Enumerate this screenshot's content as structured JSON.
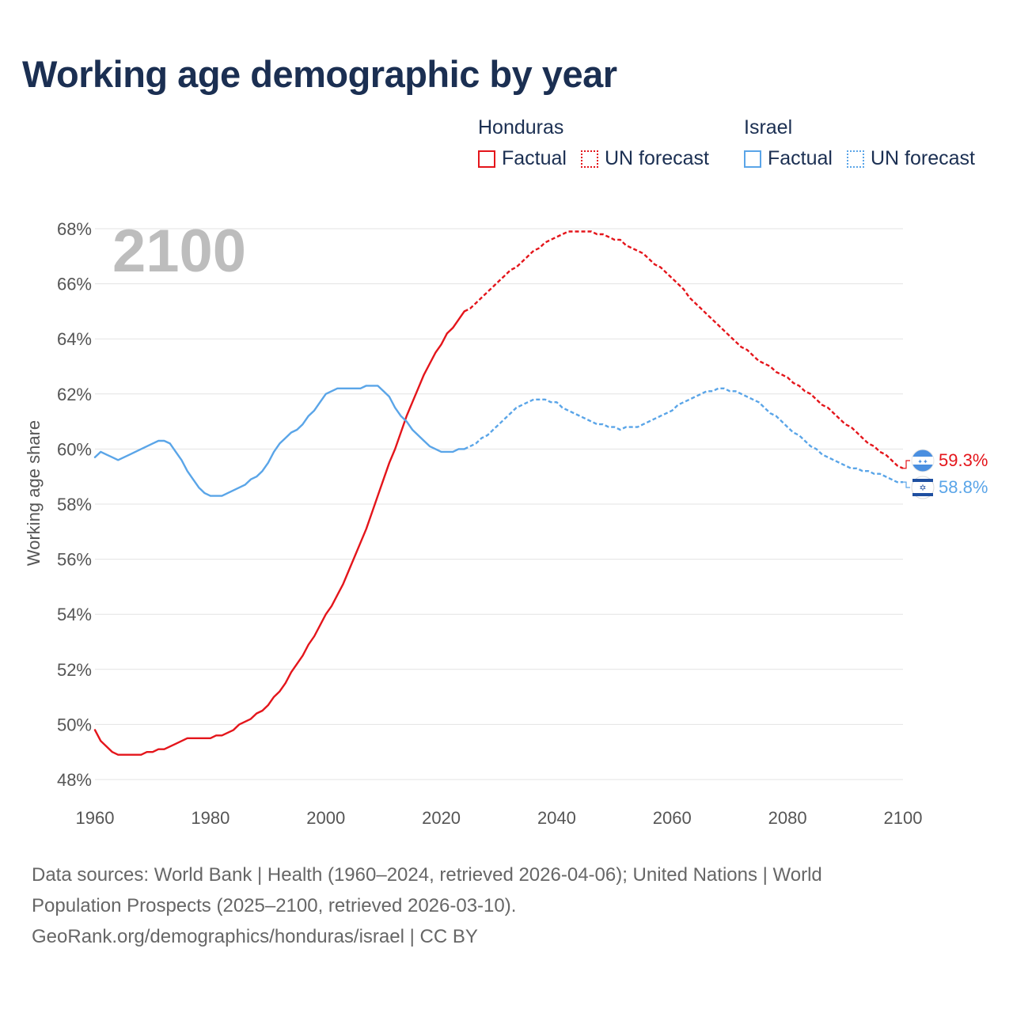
{
  "title": "Working age demographic by year",
  "year_watermark": "2100",
  "legend": {
    "groups": [
      {
        "country": "Honduras",
        "factual_label": "Factual",
        "forecast_label": "UN forecast",
        "color": "#e4151b"
      },
      {
        "country": "Israel",
        "factual_label": "Factual",
        "forecast_label": "UN forecast",
        "color": "#5aa5e8"
      }
    ]
  },
  "end_labels": {
    "honduras": {
      "value": "59.3%",
      "flag_icon": "honduras-flag-icon"
    },
    "israel": {
      "value": "58.8%",
      "flag_icon": "israel-flag-icon"
    }
  },
  "footer": {
    "line1": "Data sources: World Bank | Health (1960–2024, retrieved 2026-04-06); United Nations | World",
    "line2": "Population Prospects (2025–2100, retrieved 2026-03-10).",
    "line3": "GeoRank.org/demographics/honduras/israel | CC BY"
  },
  "chart_data": {
    "type": "line",
    "title": "Working age demographic by year",
    "xlabel": "",
    "ylabel": "Working age share",
    "xlim": [
      1960,
      2100
    ],
    "ylim": [
      48,
      68
    ],
    "x_ticks": [
      1960,
      1980,
      2000,
      2020,
      2040,
      2060,
      2080,
      2100
    ],
    "x_tick_labels": [
      "1960",
      "1980",
      "2000",
      "2020",
      "2040",
      "2060",
      "2080",
      "2100"
    ],
    "y_ticks": [
      48,
      50,
      52,
      54,
      56,
      58,
      60,
      62,
      64,
      66,
      68
    ],
    "y_tick_labels": [
      "48%",
      "50%",
      "52%",
      "54%",
      "56%",
      "58%",
      "60%",
      "62%",
      "64%",
      "66%",
      "68%"
    ],
    "grid": true,
    "factual_end_year": 2024,
    "series": [
      {
        "name": "Honduras",
        "color": "#e4151b",
        "points": [
          [
            1960,
            49.8
          ],
          [
            1961,
            49.4
          ],
          [
            1962,
            49.2
          ],
          [
            1963,
            49.0
          ],
          [
            1964,
            48.9
          ],
          [
            1966,
            48.9
          ],
          [
            1968,
            48.9
          ],
          [
            1969,
            49.0
          ],
          [
            1970,
            49.0
          ],
          [
            1971,
            49.1
          ],
          [
            1972,
            49.1
          ],
          [
            1974,
            49.3
          ],
          [
            1976,
            49.5
          ],
          [
            1978,
            49.5
          ],
          [
            1980,
            49.5
          ],
          [
            1981,
            49.6
          ],
          [
            1982,
            49.6
          ],
          [
            1984,
            49.8
          ],
          [
            1985,
            50.0
          ],
          [
            1987,
            50.2
          ],
          [
            1988,
            50.4
          ],
          [
            1989,
            50.5
          ],
          [
            1990,
            50.7
          ],
          [
            1991,
            51.0
          ],
          [
            1992,
            51.2
          ],
          [
            1993,
            51.5
          ],
          [
            1994,
            51.9
          ],
          [
            1996,
            52.5
          ],
          [
            1997,
            52.9
          ],
          [
            1998,
            53.2
          ],
          [
            2000,
            54.0
          ],
          [
            2001,
            54.3
          ],
          [
            2002,
            54.7
          ],
          [
            2003,
            55.1
          ],
          [
            2004,
            55.6
          ],
          [
            2005,
            56.1
          ],
          [
            2006,
            56.6
          ],
          [
            2007,
            57.1
          ],
          [
            2008,
            57.7
          ],
          [
            2009,
            58.3
          ],
          [
            2010,
            58.9
          ],
          [
            2011,
            59.5
          ],
          [
            2012,
            60.0
          ],
          [
            2013,
            60.6
          ],
          [
            2014,
            61.2
          ],
          [
            2015,
            61.7
          ],
          [
            2016,
            62.2
          ],
          [
            2017,
            62.7
          ],
          [
            2018,
            63.1
          ],
          [
            2019,
            63.5
          ],
          [
            2020,
            63.8
          ],
          [
            2021,
            64.2
          ],
          [
            2022,
            64.4
          ],
          [
            2023,
            64.7
          ],
          [
            2024,
            65.0
          ],
          [
            2025,
            65.1
          ],
          [
            2026,
            65.3
          ],
          [
            2027,
            65.5
          ],
          [
            2028,
            65.7
          ],
          [
            2029,
            65.9
          ],
          [
            2030,
            66.1
          ],
          [
            2031,
            66.3
          ],
          [
            2032,
            66.5
          ],
          [
            2033,
            66.6
          ],
          [
            2034,
            66.8
          ],
          [
            2035,
            67.0
          ],
          [
            2036,
            67.2
          ],
          [
            2037,
            67.3
          ],
          [
            2038,
            67.5
          ],
          [
            2039,
            67.6
          ],
          [
            2040,
            67.7
          ],
          [
            2041,
            67.8
          ],
          [
            2042,
            67.9
          ],
          [
            2043,
            67.9
          ],
          [
            2044,
            67.9
          ],
          [
            2045,
            67.9
          ],
          [
            2046,
            67.9
          ],
          [
            2047,
            67.8
          ],
          [
            2048,
            67.8
          ],
          [
            2049,
            67.7
          ],
          [
            2050,
            67.6
          ],
          [
            2051,
            67.6
          ],
          [
            2052,
            67.4
          ],
          [
            2053,
            67.3
          ],
          [
            2054,
            67.2
          ],
          [
            2055,
            67.1
          ],
          [
            2056,
            66.9
          ],
          [
            2057,
            66.7
          ],
          [
            2058,
            66.6
          ],
          [
            2059,
            66.4
          ],
          [
            2060,
            66.2
          ],
          [
            2061,
            66.0
          ],
          [
            2062,
            65.8
          ],
          [
            2063,
            65.5
          ],
          [
            2064,
            65.3
          ],
          [
            2065,
            65.1
          ],
          [
            2066,
            64.9
          ],
          [
            2067,
            64.7
          ],
          [
            2068,
            64.5
          ],
          [
            2069,
            64.3
          ],
          [
            2070,
            64.1
          ],
          [
            2071,
            63.9
          ],
          [
            2072,
            63.7
          ],
          [
            2073,
            63.6
          ],
          [
            2074,
            63.4
          ],
          [
            2075,
            63.2
          ],
          [
            2076,
            63.1
          ],
          [
            2077,
            63.0
          ],
          [
            2078,
            62.8
          ],
          [
            2079,
            62.7
          ],
          [
            2080,
            62.6
          ],
          [
            2081,
            62.4
          ],
          [
            2082,
            62.3
          ],
          [
            2083,
            62.1
          ],
          [
            2084,
            62.0
          ],
          [
            2085,
            61.8
          ],
          [
            2086,
            61.6
          ],
          [
            2087,
            61.5
          ],
          [
            2088,
            61.3
          ],
          [
            2089,
            61.1
          ],
          [
            2090,
            60.9
          ],
          [
            2091,
            60.8
          ],
          [
            2092,
            60.6
          ],
          [
            2093,
            60.4
          ],
          [
            2094,
            60.2
          ],
          [
            2095,
            60.1
          ],
          [
            2096,
            59.9
          ],
          [
            2097,
            59.8
          ],
          [
            2098,
            59.6
          ],
          [
            2099,
            59.4
          ],
          [
            2100,
            59.3
          ]
        ]
      },
      {
        "name": "Israel",
        "color": "#5aa5e8",
        "points": [
          [
            1960,
            59.7
          ],
          [
            1961,
            59.9
          ],
          [
            1962,
            59.8
          ],
          [
            1963,
            59.7
          ],
          [
            1964,
            59.6
          ],
          [
            1966,
            59.8
          ],
          [
            1968,
            60.0
          ],
          [
            1970,
            60.2
          ],
          [
            1971,
            60.3
          ],
          [
            1972,
            60.3
          ],
          [
            1973,
            60.2
          ],
          [
            1974,
            59.9
          ],
          [
            1975,
            59.6
          ],
          [
            1976,
            59.2
          ],
          [
            1977,
            58.9
          ],
          [
            1978,
            58.6
          ],
          [
            1979,
            58.4
          ],
          [
            1980,
            58.3
          ],
          [
            1981,
            58.3
          ],
          [
            1982,
            58.3
          ],
          [
            1983,
            58.4
          ],
          [
            1984,
            58.5
          ],
          [
            1985,
            58.6
          ],
          [
            1986,
            58.7
          ],
          [
            1987,
            58.9
          ],
          [
            1988,
            59.0
          ],
          [
            1989,
            59.2
          ],
          [
            1990,
            59.5
          ],
          [
            1991,
            59.9
          ],
          [
            1992,
            60.2
          ],
          [
            1993,
            60.4
          ],
          [
            1994,
            60.6
          ],
          [
            1995,
            60.7
          ],
          [
            1996,
            60.9
          ],
          [
            1997,
            61.2
          ],
          [
            1998,
            61.4
          ],
          [
            1999,
            61.7
          ],
          [
            2000,
            62.0
          ],
          [
            2001,
            62.1
          ],
          [
            2002,
            62.2
          ],
          [
            2004,
            62.2
          ],
          [
            2006,
            62.2
          ],
          [
            2007,
            62.3
          ],
          [
            2008,
            62.3
          ],
          [
            2009,
            62.3
          ],
          [
            2010,
            62.1
          ],
          [
            2011,
            61.9
          ],
          [
            2012,
            61.5
          ],
          [
            2013,
            61.2
          ],
          [
            2014,
            61.0
          ],
          [
            2015,
            60.7
          ],
          [
            2016,
            60.5
          ],
          [
            2017,
            60.3
          ],
          [
            2018,
            60.1
          ],
          [
            2019,
            60.0
          ],
          [
            2020,
            59.9
          ],
          [
            2021,
            59.9
          ],
          [
            2022,
            59.9
          ],
          [
            2023,
            60.0
          ],
          [
            2024,
            60.0
          ],
          [
            2025,
            60.1
          ],
          [
            2026,
            60.2
          ],
          [
            2027,
            60.4
          ],
          [
            2028,
            60.5
          ],
          [
            2029,
            60.7
          ],
          [
            2030,
            60.9
          ],
          [
            2031,
            61.1
          ],
          [
            2032,
            61.3
          ],
          [
            2033,
            61.5
          ],
          [
            2034,
            61.6
          ],
          [
            2035,
            61.7
          ],
          [
            2036,
            61.8
          ],
          [
            2037,
            61.8
          ],
          [
            2038,
            61.8
          ],
          [
            2039,
            61.7
          ],
          [
            2040,
            61.7
          ],
          [
            2041,
            61.5
          ],
          [
            2042,
            61.4
          ],
          [
            2043,
            61.3
          ],
          [
            2044,
            61.2
          ],
          [
            2045,
            61.1
          ],
          [
            2046,
            61.0
          ],
          [
            2047,
            60.9
          ],
          [
            2048,
            60.9
          ],
          [
            2049,
            60.8
          ],
          [
            2050,
            60.8
          ],
          [
            2051,
            60.7
          ],
          [
            2052,
            60.8
          ],
          [
            2053,
            60.8
          ],
          [
            2054,
            60.8
          ],
          [
            2055,
            60.9
          ],
          [
            2056,
            61.0
          ],
          [
            2057,
            61.1
          ],
          [
            2058,
            61.2
          ],
          [
            2059,
            61.3
          ],
          [
            2060,
            61.4
          ],
          [
            2061,
            61.6
          ],
          [
            2062,
            61.7
          ],
          [
            2063,
            61.8
          ],
          [
            2064,
            61.9
          ],
          [
            2065,
            62.0
          ],
          [
            2066,
            62.1
          ],
          [
            2067,
            62.1
          ],
          [
            2068,
            62.2
          ],
          [
            2069,
            62.2
          ],
          [
            2070,
            62.1
          ],
          [
            2071,
            62.1
          ],
          [
            2072,
            62.0
          ],
          [
            2073,
            61.9
          ],
          [
            2074,
            61.8
          ],
          [
            2075,
            61.7
          ],
          [
            2076,
            61.5
          ],
          [
            2077,
            61.3
          ],
          [
            2078,
            61.2
          ],
          [
            2079,
            61.0
          ],
          [
            2080,
            60.8
          ],
          [
            2081,
            60.6
          ],
          [
            2082,
            60.5
          ],
          [
            2083,
            60.3
          ],
          [
            2084,
            60.1
          ],
          [
            2085,
            60.0
          ],
          [
            2086,
            59.8
          ],
          [
            2087,
            59.7
          ],
          [
            2088,
            59.6
          ],
          [
            2089,
            59.5
          ],
          [
            2090,
            59.4
          ],
          [
            2091,
            59.3
          ],
          [
            2092,
            59.3
          ],
          [
            2093,
            59.2
          ],
          [
            2094,
            59.2
          ],
          [
            2095,
            59.1
          ],
          [
            2096,
            59.1
          ],
          [
            2097,
            59.0
          ],
          [
            2098,
            58.9
          ],
          [
            2099,
            58.8
          ],
          [
            2100,
            58.8
          ]
        ]
      }
    ]
  }
}
